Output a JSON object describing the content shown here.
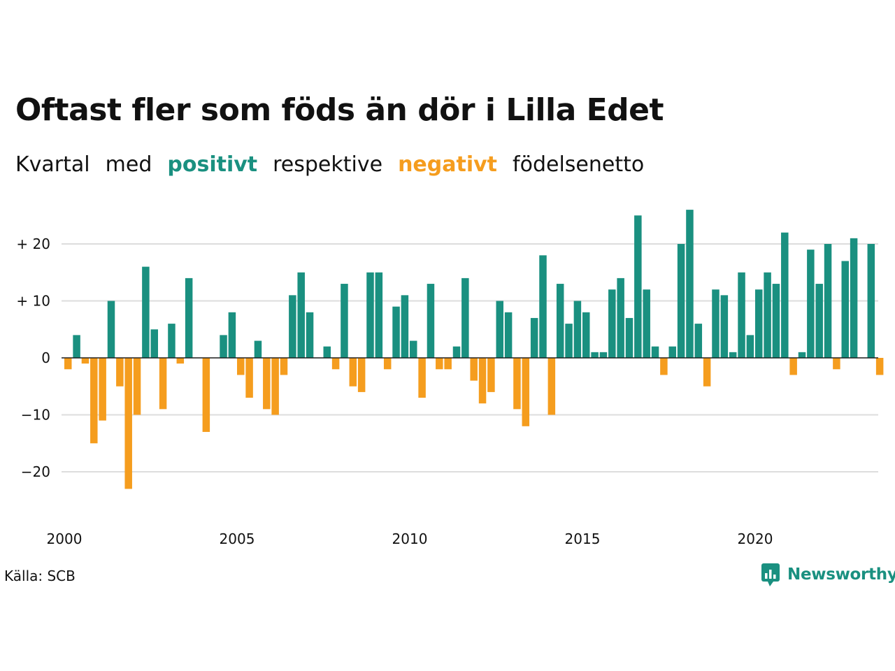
{
  "header": {
    "title": "Oftast fler som föds än dör i Lilla Edet",
    "subtitle": {
      "part1": "Kvartal",
      "part2": "med",
      "positive": "positivt",
      "part3": "respektive",
      "negative": "negativt",
      "part4": "födelsenetto"
    }
  },
  "footer": {
    "source": "Källa: SCB",
    "brand": "Newsworthy",
    "brand_icon": "bar-chart-speech-bubble-icon"
  },
  "colors": {
    "positive": "#1a9080",
    "negative": "#f59d1e",
    "grid": "#dddddd",
    "text": "#111111"
  },
  "chart_data": {
    "type": "bar",
    "title": "Oftast fler som föds än dör i Lilla Edet",
    "subtitle": "Kvartal med positivt respektive negativt födelsenetto",
    "xlabel": "",
    "ylabel": "",
    "x_start": 2000,
    "periods_per_year": 4,
    "x_ticks": [
      2000,
      2005,
      2010,
      2015,
      2020
    ],
    "x_tick_labels": [
      "2000",
      "2005",
      "2010",
      "2015",
      "2020"
    ],
    "y_ticks": [
      20,
      10,
      0,
      -10,
      -20
    ],
    "y_tick_labels": [
      "+ 20",
      "+ 10",
      "0",
      "−10",
      "−20"
    ],
    "ylim": [
      -28,
      27
    ],
    "grid": true,
    "values": [
      -2,
      4,
      -1,
      -15,
      -11,
      10,
      -5,
      -23,
      -10,
      16,
      5,
      -9,
      6,
      -1,
      14,
      0,
      -13,
      0,
      4,
      8,
      -3,
      -7,
      3,
      -9,
      -10,
      -3,
      11,
      15,
      8,
      0,
      2,
      -2,
      13,
      -5,
      -6,
      15,
      15,
      -2,
      9,
      11,
      3,
      -7,
      13,
      -2,
      -2,
      2,
      14,
      -4,
      -8,
      -6,
      10,
      8,
      -9,
      -12,
      7,
      18,
      -10,
      13,
      6,
      10,
      8,
      1,
      1,
      12,
      14,
      7,
      25,
      12,
      2,
      -3,
      2,
      20,
      26,
      6,
      -5,
      12,
      11,
      1,
      15,
      4,
      12,
      15,
      13,
      22,
      -3,
      1,
      19,
      13,
      20,
      -2,
      17,
      21,
      0,
      20,
      -3
    ]
  }
}
